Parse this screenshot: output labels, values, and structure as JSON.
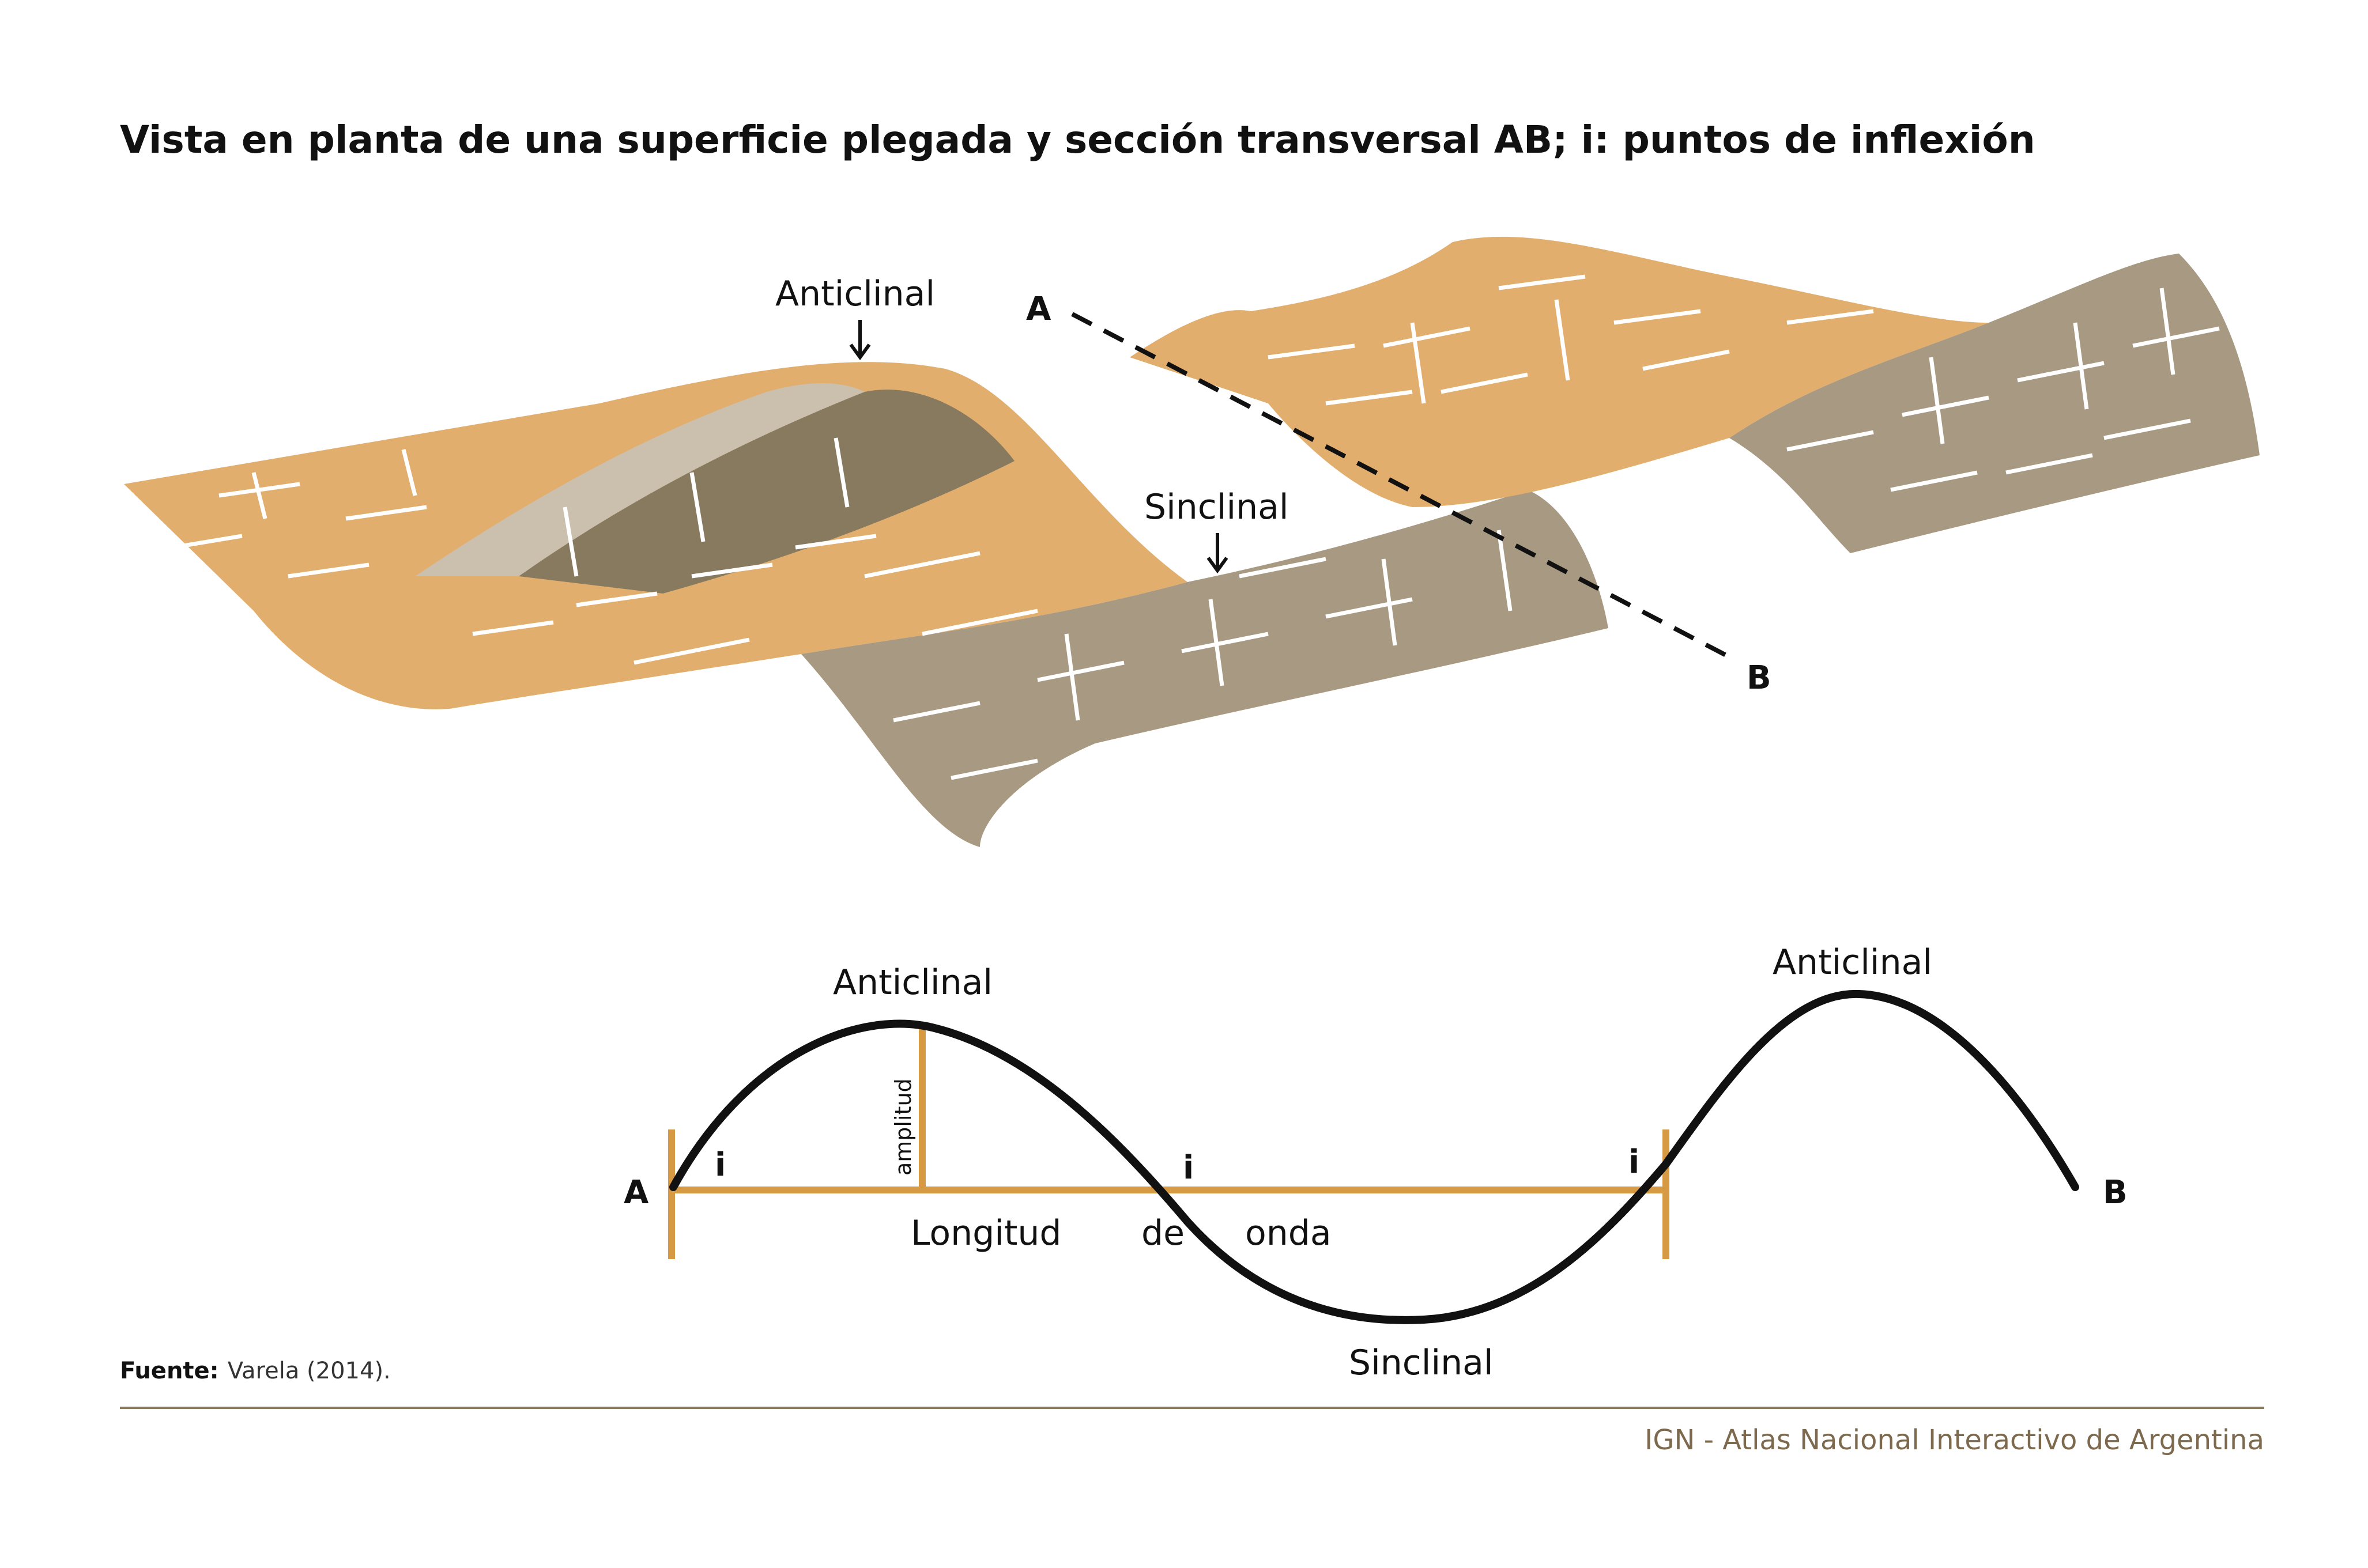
{
  "title": "Vista en planta de una superficie plegada y sección transversal AB; i: puntos de inflexión",
  "block": {
    "anticline_label": "Anticlinal",
    "syncline_label": "Sinclinal",
    "point_a": "A",
    "point_b": "B"
  },
  "profile": {
    "anticline_left": "Anticlinal",
    "anticline_right": "Anticlinal",
    "syncline": "Sinclinal",
    "amplitude": "amplitud",
    "inflection_1": "i",
    "inflection_2": "i",
    "inflection_3": "i",
    "wavelength_1": "Longitud",
    "wavelength_2": "de",
    "wavelength_3": "onda",
    "point_a": "A",
    "point_b": "B"
  },
  "source": {
    "label": "Fuente:",
    "text": "Varela (2014)."
  },
  "credit": "IGN - Atlas Nacional Interactivo de Argentina",
  "colors": {
    "orange": "#e2ae6e",
    "orange_line": "#d69a45",
    "taupe": "#a89a82",
    "dark_taupe": "#877a5f",
    "light_taupe": "#c9bfae",
    "credit": "#7d6a4e"
  }
}
